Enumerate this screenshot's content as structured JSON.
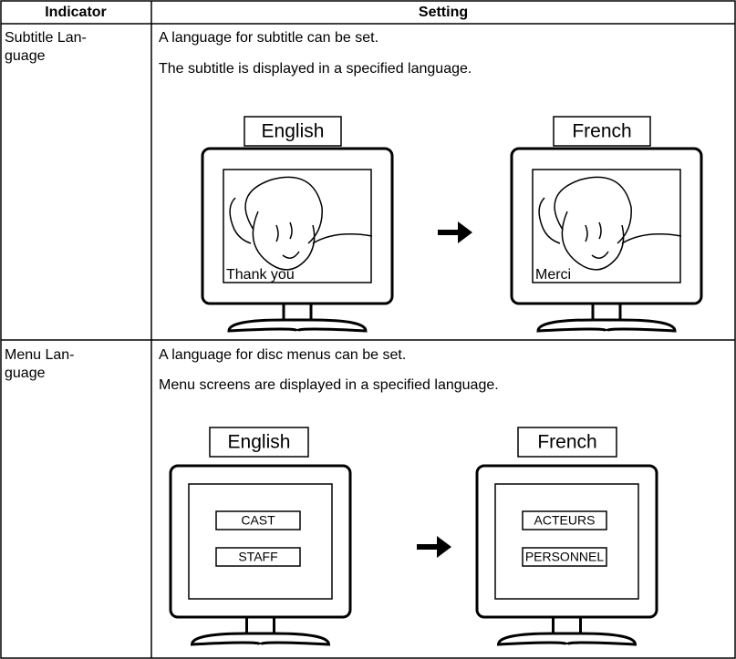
{
  "table": {
    "header": [
      "Indicator",
      "Setting"
    ],
    "rows": [
      {
        "indicator": [
          "Subtitle Lan-",
          "guage"
        ],
        "setting": [
          "A language for subtitle can be set.",
          "The subtitle is displayed in a specified language."
        ],
        "illustration": {
          "before_label": "English",
          "after_label": "French",
          "before_caption": "Thank you",
          "after_caption": "Merci"
        }
      },
      {
        "indicator": [
          "Menu Lan-",
          "guage"
        ],
        "setting": [
          "A language for disc menus can be set.",
          "Menu screens are displayed in a specified language."
        ],
        "illustration": {
          "before_label": "English",
          "after_label": "French",
          "before_items": [
            "CAST",
            "STAFF"
          ],
          "after_items": [
            "ACTEURS",
            "PERSONNEL"
          ]
        }
      }
    ]
  }
}
